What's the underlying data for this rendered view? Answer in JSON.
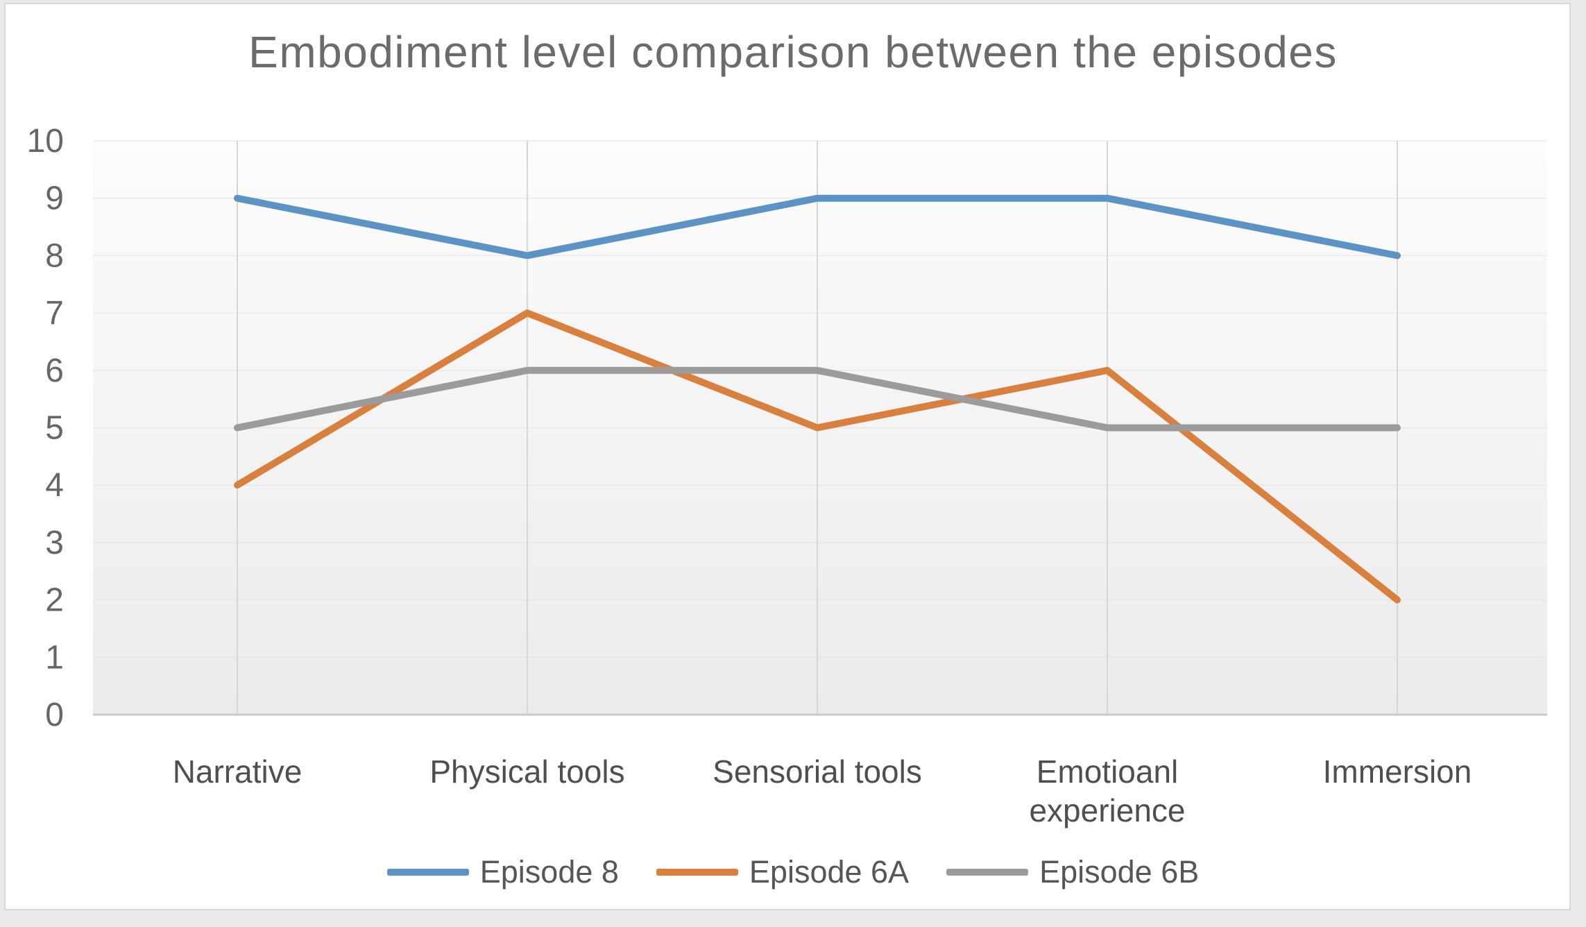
{
  "chart_data": {
    "type": "line",
    "title": "Embodiment level comparison between the episodes",
    "categories": [
      "Narrative",
      "Physical tools",
      "Sensorial tools",
      "Emotioanl experience",
      "Immersion"
    ],
    "series": [
      {
        "name": "Episode 8",
        "color": "#5B93C5",
        "values": [
          9,
          8,
          9,
          9,
          8
        ]
      },
      {
        "name": "Episode 6A",
        "color": "#D9803E",
        "values": [
          4,
          7,
          5,
          6,
          2
        ]
      },
      {
        "name": "Episode 6B",
        "color": "#9B9B9B",
        "values": [
          5,
          6,
          6,
          5,
          5
        ]
      }
    ],
    "ylim": [
      0,
      10
    ],
    "yticks": [
      0,
      1,
      2,
      3,
      4,
      5,
      6,
      7,
      8,
      9,
      10
    ],
    "xlabel": "",
    "ylabel": "",
    "grid": "vertical category gridlines with faint horizontal gridlines",
    "legend_position": "bottom-center"
  }
}
